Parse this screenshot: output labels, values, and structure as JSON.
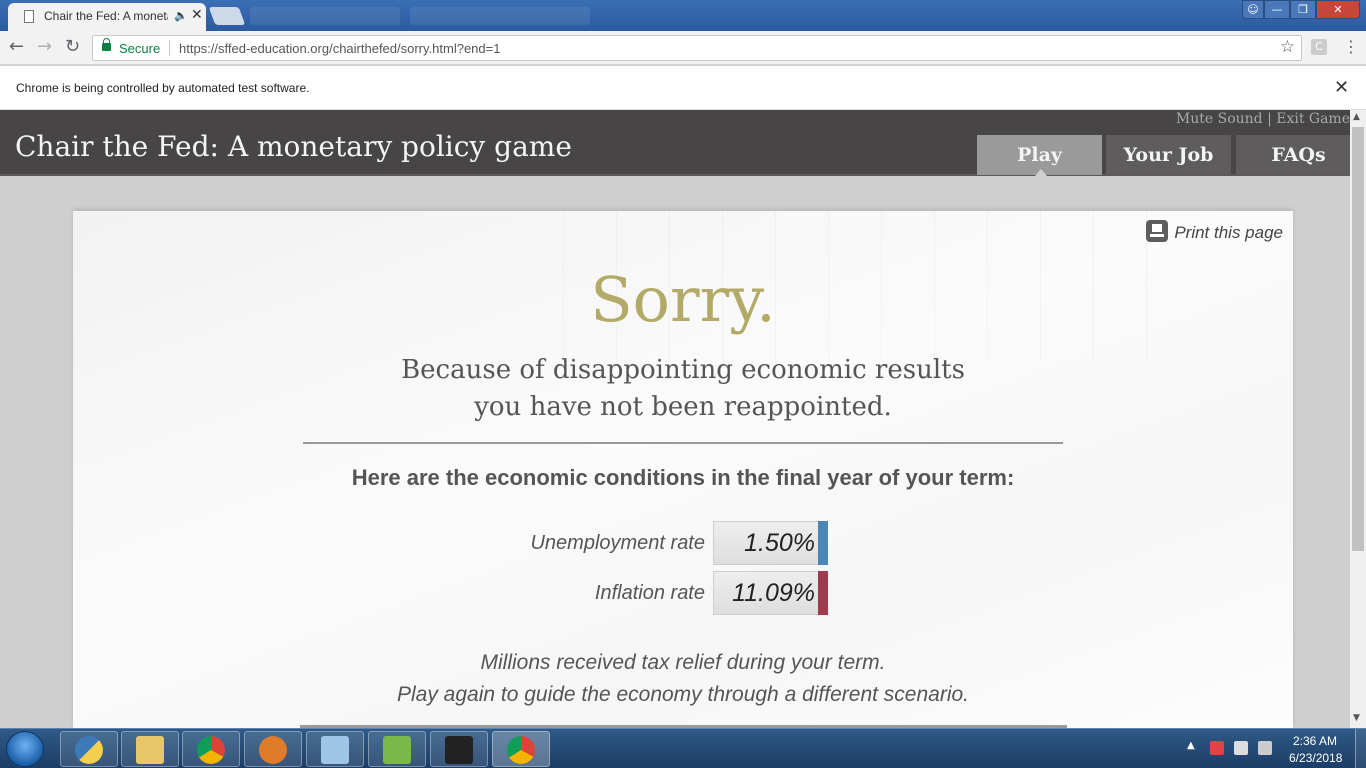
{
  "browser": {
    "tab_title": "Chair the Fed: A monetary policy game",
    "secure_label": "Secure",
    "url": "https://sffed-education.org/chairthefed/sorry.html?end=1",
    "ext_letter": "C"
  },
  "infobar": {
    "text": "Chrome is being controlled by automated test software."
  },
  "site": {
    "title": "Chair the Fed: A monetary policy game",
    "header_links": "Mute Sound | Exit Game",
    "nav": {
      "play": "Play",
      "your_job": "Your Job",
      "faqs": "FAQs"
    }
  },
  "card": {
    "print_label": "Print this page",
    "heading": "Sorry.",
    "subtitle_line1": "Because of disappointing economic results",
    "subtitle_line2": "you have not been reappointed.",
    "conditions_heading": "Here are the economic conditions in the final year of your term:",
    "stats": {
      "unemployment": {
        "label": "Unemployment rate",
        "value": "1.50%",
        "bar_color": "#4a86b8"
      },
      "inflation": {
        "label": "Inflation rate",
        "value": "11.09%",
        "bar_color": "#a23a4e"
      }
    },
    "note_line1": "Millions received tax relief during your term.",
    "note_line2": "Play again to guide the economy through a different scenario."
  },
  "taskbar": {
    "time": "2:36 AM",
    "date": "6/23/2018"
  }
}
